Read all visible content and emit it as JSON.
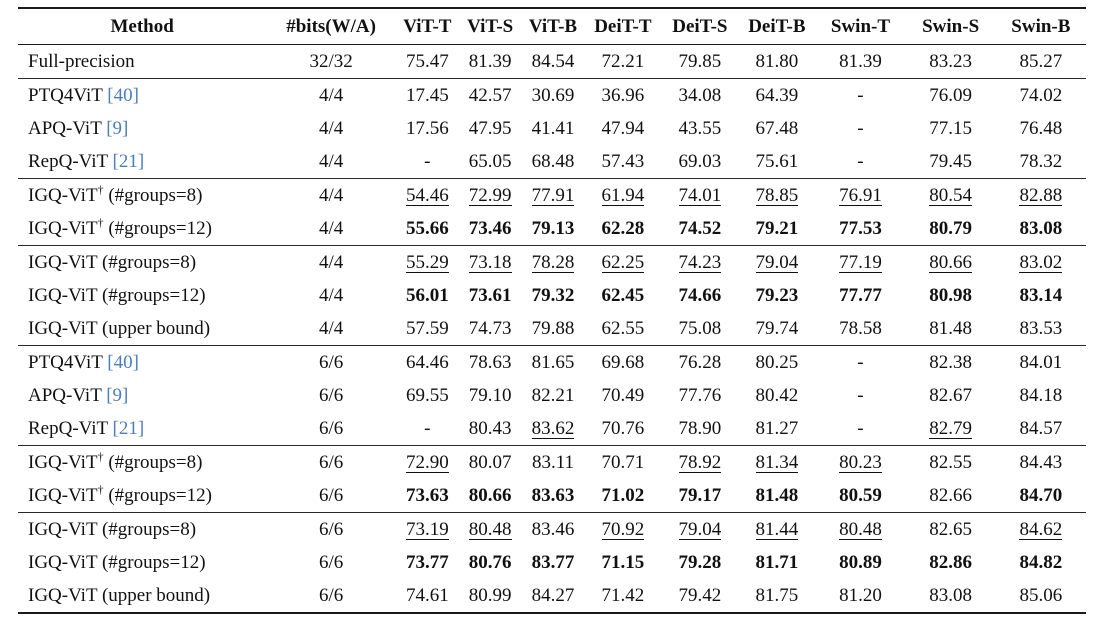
{
  "colors": {
    "text": "#111111",
    "citation_link": "#4a7ebc",
    "rule": "#1a1a1a"
  },
  "table": {
    "dagger_symbol": "†",
    "dash": "-",
    "columns": [
      "Method",
      "#bits(W/A)",
      "ViT-T",
      "ViT-S",
      "ViT-B",
      "DeiT-T",
      "DeiT-S",
      "DeiT-B",
      "Swin-T",
      "Swin-S",
      "Swin-B"
    ],
    "style_legend": {
      "n": "normal",
      "b": "bold-best",
      "u": "underline-second-best"
    },
    "rows": [
      {
        "method": {
          "name": "Full-precision",
          "cite": "",
          "sup": "",
          "note": ""
        },
        "bits": "32/32",
        "values": [
          "75.47",
          "81.39",
          "84.54",
          "72.21",
          "79.85",
          "81.80",
          "81.39",
          "83.23",
          "85.27"
        ],
        "styles": "nnnnnnnnn",
        "sec": false
      },
      {
        "method": {
          "name": "PTQ4ViT",
          "cite": "[40]",
          "sup": "",
          "note": ""
        },
        "bits": "4/4",
        "values": [
          "17.45",
          "42.57",
          "30.69",
          "36.96",
          "34.08",
          "64.39",
          "-",
          "76.09",
          "74.02"
        ],
        "styles": "nnnnnnnnn",
        "sec": true
      },
      {
        "method": {
          "name": "APQ-ViT",
          "cite": "[9]",
          "sup": "",
          "note": ""
        },
        "bits": "4/4",
        "values": [
          "17.56",
          "47.95",
          "41.41",
          "47.94",
          "43.55",
          "67.48",
          "-",
          "77.15",
          "76.48"
        ],
        "styles": "nnnnnnnnn",
        "sec": false
      },
      {
        "method": {
          "name": "RepQ-ViT",
          "cite": "[21]",
          "sup": "",
          "note": ""
        },
        "bits": "4/4",
        "values": [
          "-",
          "65.05",
          "68.48",
          "57.43",
          "69.03",
          "75.61",
          "-",
          "79.45",
          "78.32"
        ],
        "styles": "nnnnnnnnn",
        "sec": false
      },
      {
        "method": {
          "name": "IGQ-ViT",
          "cite": "",
          "sup": "†",
          "note": "(#groups=8)"
        },
        "bits": "4/4",
        "values": [
          "54.46",
          "72.99",
          "77.91",
          "61.94",
          "74.01",
          "78.85",
          "76.91",
          "80.54",
          "82.88"
        ],
        "styles": "uuuuuuuuu",
        "sec": true
      },
      {
        "method": {
          "name": "IGQ-ViT",
          "cite": "",
          "sup": "†",
          "note": "(#groups=12)"
        },
        "bits": "4/4",
        "values": [
          "55.66",
          "73.46",
          "79.13",
          "62.28",
          "74.52",
          "79.21",
          "77.53",
          "80.79",
          "83.08"
        ],
        "styles": "bbbbbbbbb",
        "sec": false
      },
      {
        "method": {
          "name": "IGQ-ViT",
          "cite": "",
          "sup": "",
          "note": "(#groups=8)"
        },
        "bits": "4/4",
        "values": [
          "55.29",
          "73.18",
          "78.28",
          "62.25",
          "74.23",
          "79.04",
          "77.19",
          "80.66",
          "83.02"
        ],
        "styles": "uuuuuuuuu",
        "sec": true
      },
      {
        "method": {
          "name": "IGQ-ViT",
          "cite": "",
          "sup": "",
          "note": "(#groups=12)"
        },
        "bits": "4/4",
        "values": [
          "56.01",
          "73.61",
          "79.32",
          "62.45",
          "74.66",
          "79.23",
          "77.77",
          "80.98",
          "83.14"
        ],
        "styles": "bbbbbbbbb",
        "sec": false
      },
      {
        "method": {
          "name": "IGQ-ViT",
          "cite": "",
          "sup": "",
          "note": "(upper bound)"
        },
        "bits": "4/4",
        "values": [
          "57.59",
          "74.73",
          "79.88",
          "62.55",
          "75.08",
          "79.74",
          "78.58",
          "81.48",
          "83.53"
        ],
        "styles": "nnnnnnnnn",
        "sec": false
      },
      {
        "method": {
          "name": "PTQ4ViT",
          "cite": "[40]",
          "sup": "",
          "note": ""
        },
        "bits": "6/6",
        "values": [
          "64.46",
          "78.63",
          "81.65",
          "69.68",
          "76.28",
          "80.25",
          "-",
          "82.38",
          "84.01"
        ],
        "styles": "nnnnnnnnn",
        "sec": true
      },
      {
        "method": {
          "name": "APQ-ViT",
          "cite": "[9]",
          "sup": "",
          "note": ""
        },
        "bits": "6/6",
        "values": [
          "69.55",
          "79.10",
          "82.21",
          "70.49",
          "77.76",
          "80.42",
          "-",
          "82.67",
          "84.18"
        ],
        "styles": "nnnnnnnnn",
        "sec": false
      },
      {
        "method": {
          "name": "RepQ-ViT",
          "cite": "[21]",
          "sup": "",
          "note": ""
        },
        "bits": "6/6",
        "values": [
          "-",
          "80.43",
          "83.62",
          "70.76",
          "78.90",
          "81.27",
          "-",
          "82.79",
          "84.57"
        ],
        "styles": "nnunnnnun",
        "sec": false
      },
      {
        "method": {
          "name": "IGQ-ViT",
          "cite": "",
          "sup": "†",
          "note": "(#groups=8)"
        },
        "bits": "6/6",
        "values": [
          "72.90",
          "80.07",
          "83.11",
          "70.71",
          "78.92",
          "81.34",
          "80.23",
          "82.55",
          "84.43"
        ],
        "styles": "unnnuuunn",
        "sec": true
      },
      {
        "method": {
          "name": "IGQ-ViT",
          "cite": "",
          "sup": "†",
          "note": "(#groups=12)"
        },
        "bits": "6/6",
        "values": [
          "73.63",
          "80.66",
          "83.63",
          "71.02",
          "79.17",
          "81.48",
          "80.59",
          "82.66",
          "84.70"
        ],
        "styles": "bbbbbbbnb",
        "sec": false
      },
      {
        "method": {
          "name": "IGQ-ViT",
          "cite": "",
          "sup": "",
          "note": "(#groups=8)"
        },
        "bits": "6/6",
        "values": [
          "73.19",
          "80.48",
          "83.46",
          "70.92",
          "79.04",
          "81.44",
          "80.48",
          "82.65",
          "84.62"
        ],
        "styles": "uunuuuunu",
        "sec": true
      },
      {
        "method": {
          "name": "IGQ-ViT",
          "cite": "",
          "sup": "",
          "note": "(#groups=12)"
        },
        "bits": "6/6",
        "values": [
          "73.77",
          "80.76",
          "83.77",
          "71.15",
          "79.28",
          "81.71",
          "80.89",
          "82.86",
          "84.82"
        ],
        "styles": "bbbbbbbbb",
        "sec": false
      },
      {
        "method": {
          "name": "IGQ-ViT",
          "cite": "",
          "sup": "",
          "note": "(upper bound)"
        },
        "bits": "6/6",
        "values": [
          "74.61",
          "80.99",
          "84.27",
          "71.42",
          "79.42",
          "81.75",
          "81.20",
          "83.08",
          "85.06"
        ],
        "styles": "nnnnnnnnn",
        "sec": false
      }
    ]
  }
}
